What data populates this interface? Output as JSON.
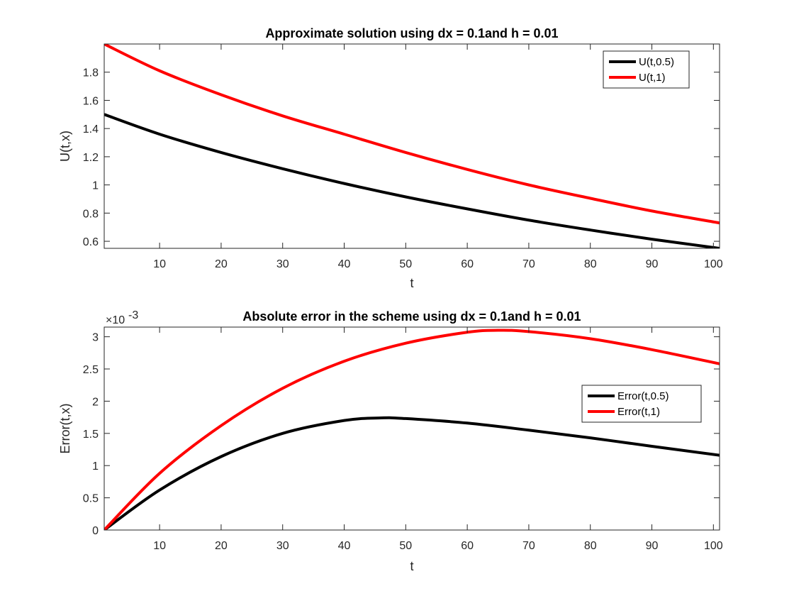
{
  "chart_data": [
    {
      "type": "line",
      "title": "Approximate solution using dx = 0.1and h = 0.01",
      "xlabel": "t",
      "ylabel": "U(t,x)",
      "xlim": [
        1,
        101
      ],
      "ylim": [
        0.55,
        2.0
      ],
      "xticks": [
        10,
        20,
        30,
        40,
        50,
        60,
        70,
        80,
        90,
        100
      ],
      "xtick_labels": [
        "10",
        "20",
        "30",
        "40",
        "50",
        "60",
        "70",
        "80",
        "90",
        "100"
      ],
      "yticks": [
        0.6,
        0.8,
        1.0,
        1.2,
        1.4,
        1.6,
        1.8
      ],
      "ytick_labels": [
        "0.6",
        "0.8",
        "1",
        "1.2",
        "1.4",
        "1.6",
        "1.8"
      ],
      "legend_position": "top-right",
      "grid": false,
      "series": [
        {
          "name": "U(t,0.5)",
          "color": "#000000",
          "x": [
            1,
            10,
            20,
            30,
            40,
            50,
            60,
            70,
            80,
            90,
            101
          ],
          "y": [
            1.5,
            1.36,
            1.23,
            1.115,
            1.01,
            0.915,
            0.83,
            0.75,
            0.68,
            0.615,
            0.55
          ]
        },
        {
          "name": "U(t,1)",
          "color": "#ff0000",
          "x": [
            1,
            10,
            20,
            30,
            40,
            50,
            60,
            70,
            80,
            90,
            101
          ],
          "y": [
            2.0,
            1.81,
            1.64,
            1.49,
            1.36,
            1.23,
            1.11,
            1.0,
            0.905,
            0.815,
            0.73
          ]
        }
      ]
    },
    {
      "type": "line",
      "title": "Absolute error in the scheme using dx = 0.1and h = 0.01",
      "xlabel": "t",
      "ylabel": "Error(t,x)",
      "y_multiplier_label": "×10",
      "y_multiplier_exponent": "-3",
      "xlim": [
        1,
        101
      ],
      "ylim": [
        0,
        3.15
      ],
      "xticks": [
        10,
        20,
        30,
        40,
        50,
        60,
        70,
        80,
        90,
        100
      ],
      "xtick_labels": [
        "10",
        "20",
        "30",
        "40",
        "50",
        "60",
        "70",
        "80",
        "90",
        "100"
      ],
      "yticks": [
        0,
        0.5,
        1,
        1.5,
        2,
        2.5,
        3
      ],
      "ytick_labels": [
        "0",
        "0.5",
        "1",
        "1.5",
        "2",
        "2.5",
        "3"
      ],
      "legend_position": "right",
      "grid": false,
      "series": [
        {
          "name": "Error(t,0.5)",
          "color": "#000000",
          "x": [
            1,
            10,
            20,
            30,
            40,
            46,
            50,
            60,
            70,
            80,
            90,
            101
          ],
          "y": [
            0,
            0.62,
            1.14,
            1.5,
            1.7,
            1.74,
            1.73,
            1.66,
            1.55,
            1.43,
            1.3,
            1.16
          ]
        },
        {
          "name": "Error(t,1)",
          "color": "#ff0000",
          "x": [
            1,
            10,
            20,
            30,
            40,
            50,
            60,
            65,
            70,
            80,
            90,
            101
          ],
          "y": [
            0,
            0.88,
            1.62,
            2.2,
            2.62,
            2.9,
            3.07,
            3.1,
            3.08,
            2.97,
            2.8,
            2.58
          ]
        }
      ]
    }
  ]
}
